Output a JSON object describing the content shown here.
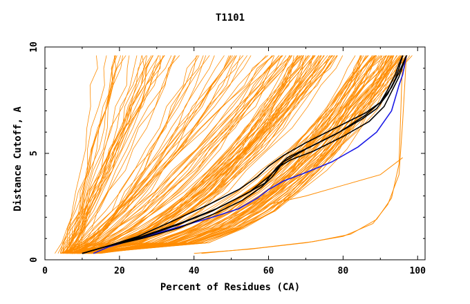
{
  "chart_data": {
    "type": "line",
    "title": "T1101",
    "xlabel": "Percent of Residues (CA)",
    "ylabel": "Distance Cutoff, A",
    "xlim": [
      0,
      102
    ],
    "ylim": [
      0,
      10
    ],
    "xticks": [
      "0",
      "20",
      "40",
      "60",
      "80",
      "100"
    ],
    "yticks": [
      "0",
      "5",
      "10"
    ],
    "grid": false,
    "legend": "none",
    "colors": {
      "background": "#orange-lines",
      "orange": "#ff8c00",
      "black": "#000000",
      "blue": "#1a1ae6"
    },
    "highlight_series": [
      {
        "color": "#1a1ae6",
        "x": [
          13,
          17,
          25,
          35,
          45,
          52,
          57,
          60,
          64,
          70,
          77,
          84,
          89,
          93,
          95,
          96,
          97
        ],
        "y": [
          0.3,
          0.6,
          1.0,
          1.5,
          2.0,
          2.4,
          2.9,
          3.3,
          3.7,
          4.1,
          4.6,
          5.3,
          6.0,
          7.0,
          8.2,
          8.7,
          9.6
        ]
      },
      {
        "color": "#000000",
        "x": [
          10,
          16,
          25,
          35,
          45,
          55,
          60,
          63,
          66,
          72,
          80,
          87,
          91,
          93,
          95,
          96,
          97
        ],
        "y": [
          0.3,
          0.6,
          1.0,
          1.6,
          2.3,
          3.2,
          3.9,
          4.4,
          4.7,
          5.1,
          5.8,
          6.5,
          7.2,
          7.9,
          8.6,
          9.1,
          9.6
        ]
      },
      {
        "color": "#000000",
        "x": [
          10,
          16,
          26,
          36,
          46,
          54,
          59,
          62,
          65,
          71,
          79,
          86,
          90,
          92,
          94,
          95,
          96
        ],
        "y": [
          0.3,
          0.6,
          1.1,
          1.7,
          2.4,
          3.1,
          3.6,
          4.3,
          4.8,
          5.3,
          6.0,
          6.8,
          7.4,
          8.0,
          8.7,
          9.2,
          9.6
        ]
      },
      {
        "color": "#000000",
        "x": [
          10,
          16,
          25,
          34,
          44,
          52,
          57,
          60,
          64,
          70,
          78,
          86,
          90,
          93,
          95,
          96,
          97
        ],
        "y": [
          0.3,
          0.6,
          1.1,
          1.8,
          2.6,
          3.3,
          3.9,
          4.4,
          4.9,
          5.5,
          6.2,
          6.9,
          7.4,
          8.1,
          8.8,
          9.2,
          9.6
        ]
      },
      {
        "color": "#000000",
        "x": [
          10,
          16,
          26,
          36,
          46,
          53,
          58,
          61,
          64,
          70,
          78,
          85,
          89,
          92,
          94,
          95,
          96
        ],
        "y": [
          0.3,
          0.6,
          1.0,
          1.5,
          2.2,
          2.8,
          3.4,
          3.9,
          4.6,
          5.2,
          5.9,
          6.6,
          7.1,
          7.8,
          8.5,
          9.0,
          9.6
        ]
      }
    ]
  }
}
